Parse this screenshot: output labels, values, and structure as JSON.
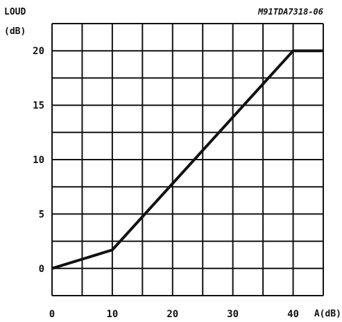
{
  "chart_data": {
    "type": "line",
    "figure_code": "M91TDA7318-06",
    "ylabel_line1": "LOUD",
    "ylabel_line2": "(dB)",
    "xlabel": "A(dB)",
    "xlim": [
      0,
      45
    ],
    "ylim": [
      -2.5,
      22.5
    ],
    "grid": true,
    "x_grid_step": 5,
    "y_grid_step": 2.5,
    "x_ticks": [
      0,
      10,
      20,
      30,
      40
    ],
    "x_tick_labels": [
      "0",
      "10",
      "20",
      "30",
      "40"
    ],
    "y_ticks": [
      0,
      5,
      10,
      15,
      20
    ],
    "y_tick_labels": [
      "0",
      "5",
      "10",
      "15",
      "20"
    ],
    "series": [
      {
        "x": [
          0,
          10,
          40,
          45
        ],
        "y": [
          0,
          1.7,
          20,
          20
        ]
      }
    ],
    "line_color": "#111111",
    "grid_color": "#111111"
  }
}
